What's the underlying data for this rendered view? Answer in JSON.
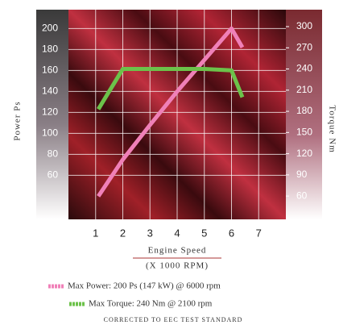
{
  "chart_data": {
    "type": "line",
    "y_label": "Power Ps",
    "y2_label": "Torque Nm",
    "x_label": "Engine Speed",
    "x_sublabel": "(X 1000 RPM)",
    "note": "CORRECTED TO EEC TEST STANDARD",
    "x": [
      1.1,
      2,
      3,
      4,
      5,
      6,
      6.4
    ],
    "series": [
      {
        "name": "Max Power: 200 Ps (147 kW) @ 6000 rpm",
        "color": "#f080b8",
        "values": [
          40,
          75,
          108,
          140,
          170,
          200,
          182
        ]
      },
      {
        "name": "Max Torque: 240 Nm @ 2100 rpm",
        "color": "#6cc24a",
        "axis": "y2",
        "values": [
          183,
          240,
          240,
          240,
          240,
          238,
          200
        ]
      }
    ],
    "xlim": [
      0,
      8
    ],
    "xticks": [
      1,
      2,
      3,
      4,
      5,
      6,
      7
    ],
    "ylim": [
      18,
      218
    ],
    "yticks": [
      60,
      80,
      100,
      120,
      140,
      160,
      180,
      200
    ],
    "y2lim": [
      27,
      324
    ],
    "y2ticks": [
      60,
      90,
      120,
      150,
      180,
      210,
      240,
      270,
      300
    ],
    "grid": true
  }
}
